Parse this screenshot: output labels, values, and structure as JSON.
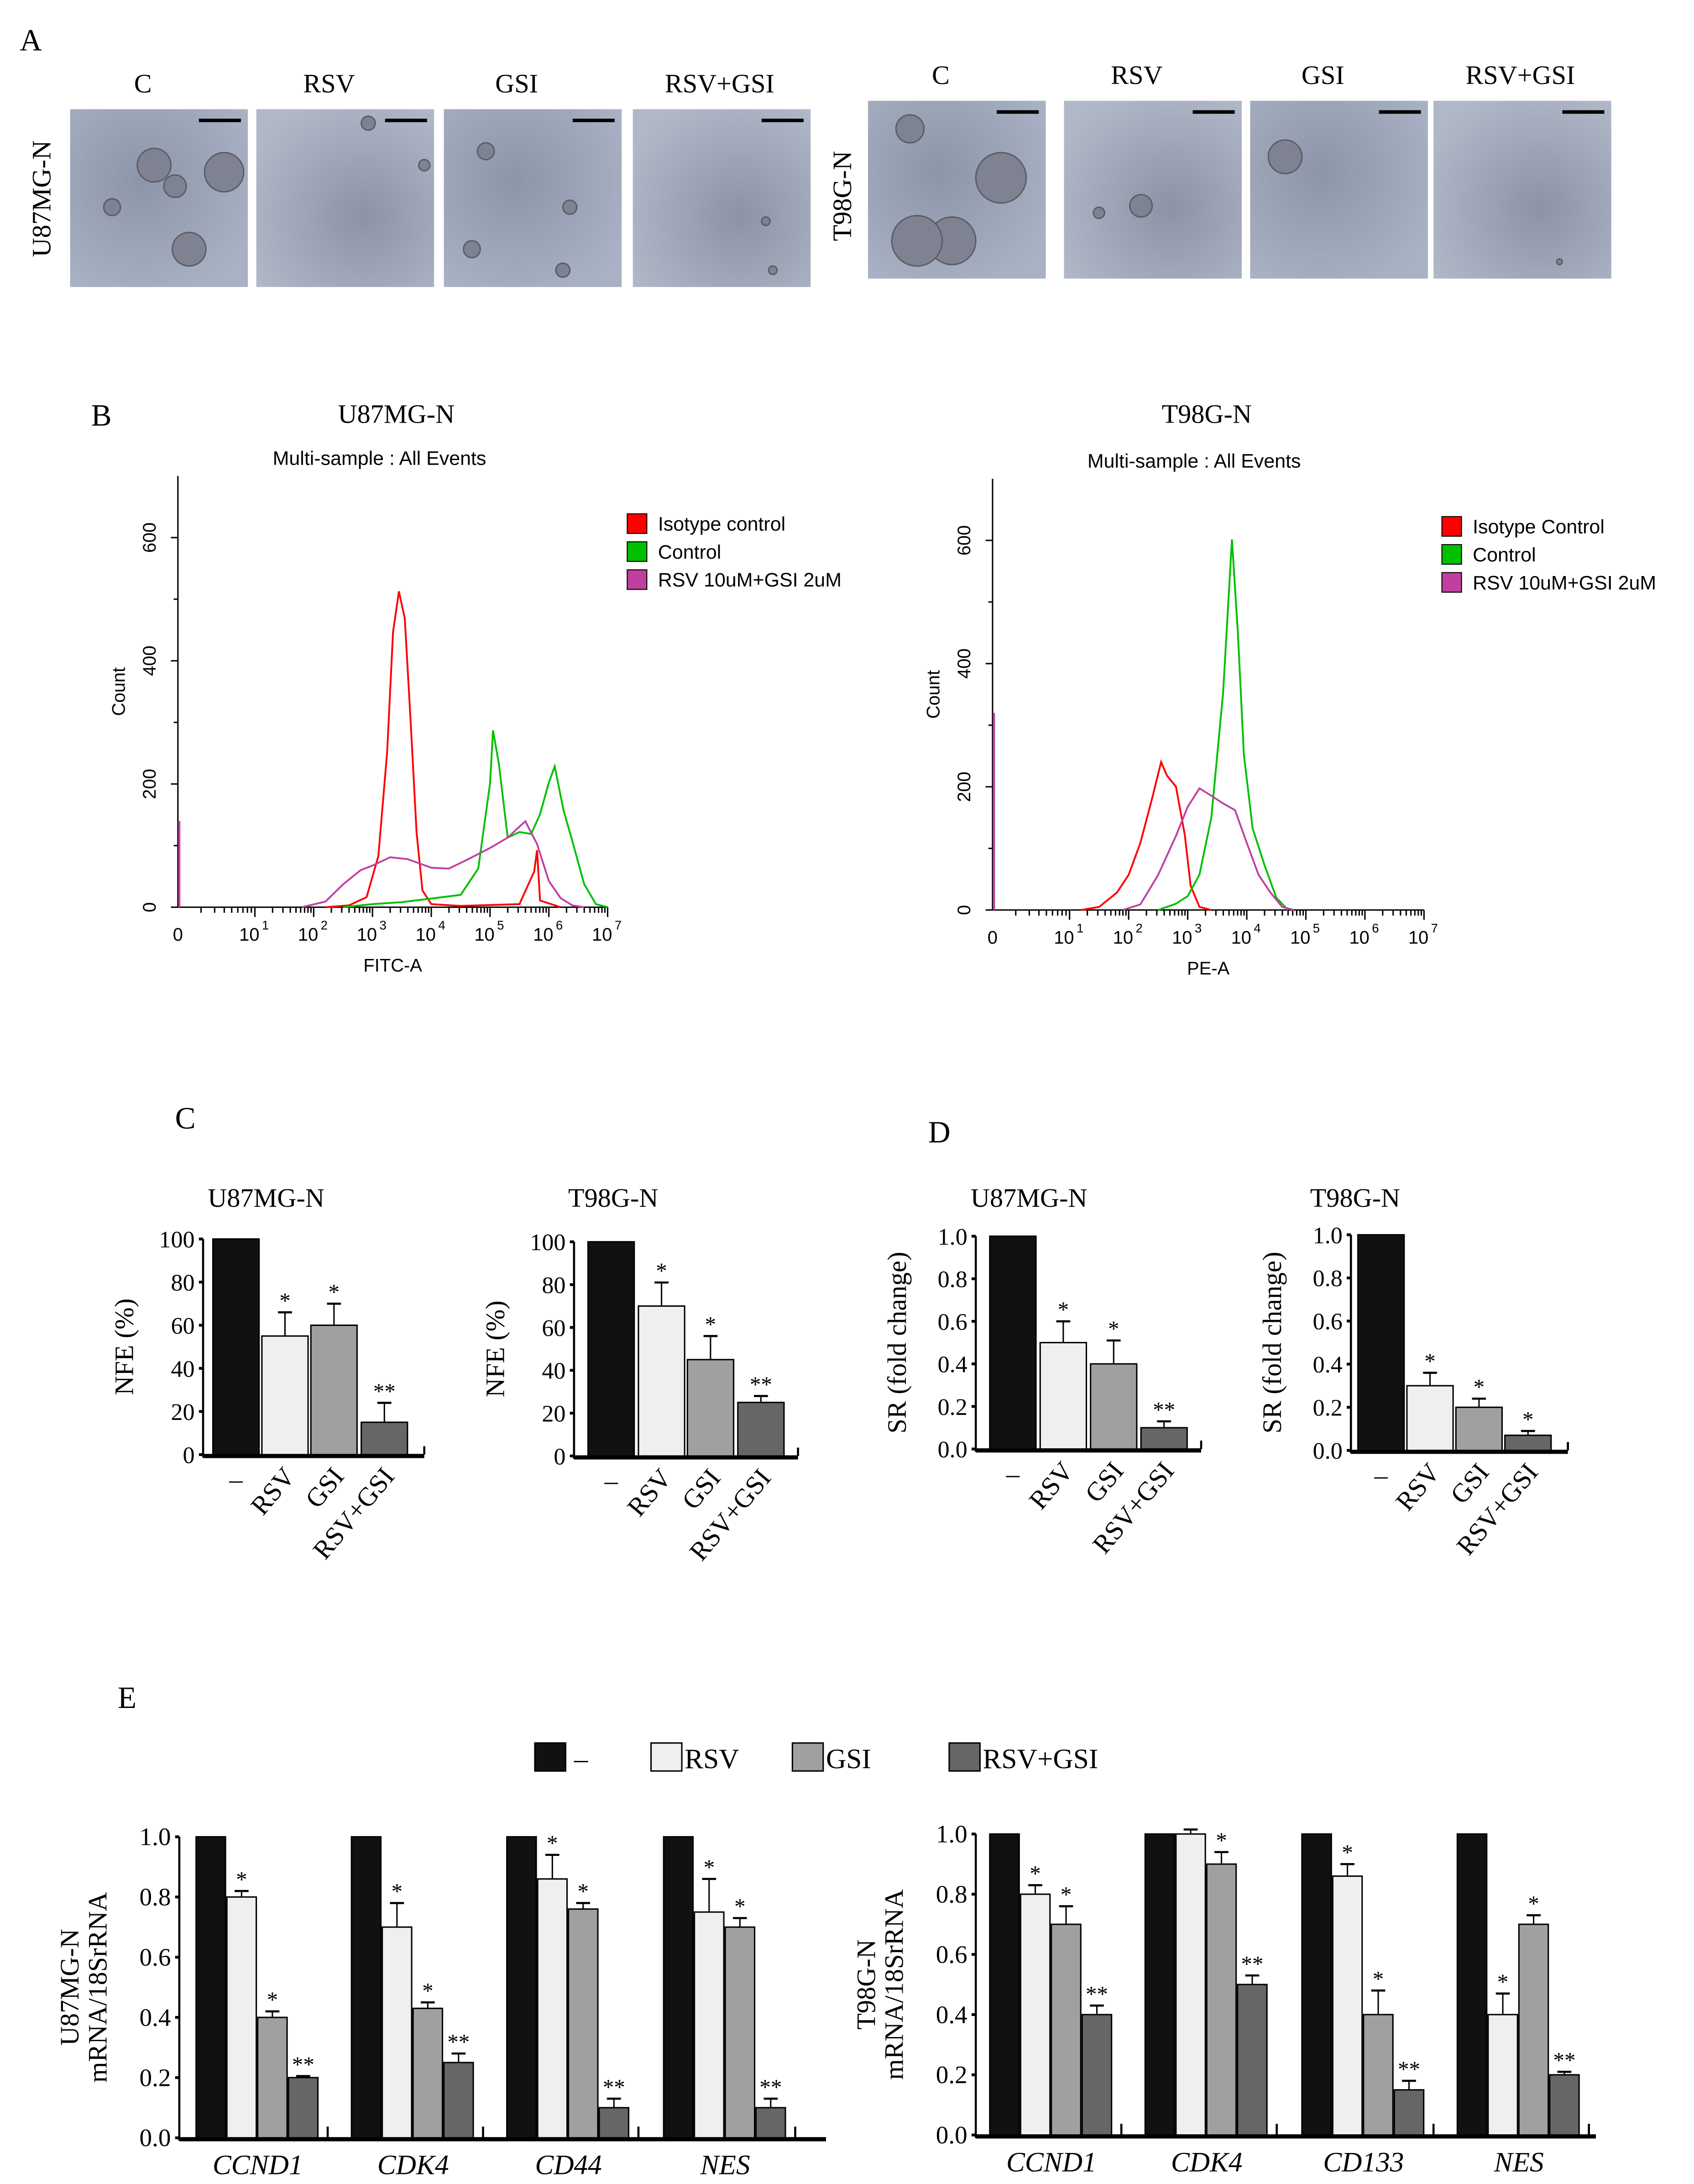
{
  "panels": {
    "a": "A",
    "b": "B",
    "c": "C",
    "d": "D",
    "e": "E"
  },
  "panel_a": {
    "left_row_label": "U87MG-N",
    "right_row_label": "T98G-N",
    "conditions": [
      "C",
      "RSV",
      "GSI",
      "RSV+GSI"
    ]
  },
  "panel_b": {
    "left_title": "U87MG-N",
    "right_title": "T98G-N",
    "subtitle": "Multi-sample : All Events"
  },
  "panel_c": {
    "left_title": "U87MG-N",
    "right_title": "T98G-N"
  },
  "panel_d": {
    "left_title": "U87MG-N",
    "right_title": "T98G-N"
  },
  "panel_e": {
    "legend": [
      "–",
      "RSV",
      "GSI",
      "RSV+GSI"
    ]
  },
  "colors": {
    "control": "#111111",
    "rsv": "#efefef",
    "gsi": "#a0a0a0",
    "rsv_gsi": "#666666",
    "isotype": "#ff0000",
    "flow_control": "#00c000",
    "flow_combo": "#c040a0"
  },
  "chart_data": [
    {
      "type": "line",
      "title": "U87MG-N",
      "subtitle": "Multi-sample : All Events",
      "xlabel": "FITC-A",
      "ylabel": "Count",
      "xscale": "log",
      "xlim_log10": [
        0,
        7
      ],
      "ylim": [
        0,
        700
      ],
      "yticks": [
        "0",
        "200",
        "400",
        "600"
      ],
      "xtick_base": "10",
      "xtick_zero": "0",
      "xtick_exponents": [
        "1",
        "2",
        "3",
        "4",
        "5",
        "6",
        "7"
      ],
      "legend_placement": "top-right",
      "series": [
        {
          "name": "Isotype control",
          "color": "#ff0000",
          "points_log10x_count": [
            [
              2.2,
              0
            ],
            [
              2.6,
              3
            ],
            [
              2.9,
              15
            ],
            [
              3.1,
              80
            ],
            [
              3.25,
              250
            ],
            [
              3.35,
              450
            ],
            [
              3.45,
              510
            ],
            [
              3.55,
              470
            ],
            [
              3.65,
              300
            ],
            [
              3.75,
              120
            ],
            [
              3.85,
              30
            ],
            [
              4.0,
              5
            ],
            [
              4.5,
              2
            ],
            [
              5.5,
              5
            ],
            [
              5.75,
              60
            ],
            [
              5.8,
              90
            ],
            [
              5.85,
              10
            ],
            [
              6.2,
              0
            ]
          ]
        },
        {
          "name": "Control",
          "color": "#00c000",
          "points_log10x_count": [
            [
              2.5,
              0
            ],
            [
              3,
              5
            ],
            [
              3.5,
              10
            ],
            [
              4,
              15
            ],
            [
              4.5,
              20
            ],
            [
              4.8,
              60
            ],
            [
              5.0,
              200
            ],
            [
              5.05,
              290
            ],
            [
              5.15,
              230
            ],
            [
              5.3,
              110
            ],
            [
              5.5,
              120
            ],
            [
              5.7,
              120
            ],
            [
              5.85,
              150
            ],
            [
              6.0,
              200
            ],
            [
              6.1,
              230
            ],
            [
              6.25,
              160
            ],
            [
              6.4,
              110
            ],
            [
              6.6,
              40
            ],
            [
              6.8,
              5
            ],
            [
              7.0,
              0
            ]
          ]
        },
        {
          "name": "RSV 10uM+GSI 2uM",
          "color": "#c040a0",
          "axis_count": 140,
          "points_log10x_count": [
            [
              1.8,
              0
            ],
            [
              2.2,
              10
            ],
            [
              2.5,
              40
            ],
            [
              2.8,
              60
            ],
            [
              3.0,
              70
            ],
            [
              3.3,
              80
            ],
            [
              3.6,
              75
            ],
            [
              4.0,
              65
            ],
            [
              4.3,
              60
            ],
            [
              4.6,
              75
            ],
            [
              5.0,
              95
            ],
            [
              5.3,
              110
            ],
            [
              5.6,
              140
            ],
            [
              5.8,
              100
            ],
            [
              6.0,
              40
            ],
            [
              6.2,
              15
            ],
            [
              6.4,
              3
            ],
            [
              6.6,
              0
            ]
          ]
        }
      ]
    },
    {
      "type": "line",
      "title": "T98G-N",
      "subtitle": "Multi-sample : All Events",
      "xlabel": "PE-A",
      "ylabel": "Count",
      "xscale": "log",
      "xlim_log10": [
        0,
        7
      ],
      "ylim": [
        0,
        700
      ],
      "yticks": [
        "0",
        "200",
        "400",
        "600"
      ],
      "xtick_base": "10",
      "xtick_zero": "0",
      "xtick_exponents": [
        "1",
        "2",
        "3",
        "4",
        "5",
        "6",
        "7"
      ],
      "legend_placement": "top-right",
      "series": [
        {
          "name": "Isotype Control",
          "color": "#ff0000",
          "points_log10x_count": [
            [
              1.2,
              0
            ],
            [
              1.5,
              5
            ],
            [
              1.8,
              30
            ],
            [
              2.0,
              60
            ],
            [
              2.2,
              110
            ],
            [
              2.4,
              180
            ],
            [
              2.55,
              240
            ],
            [
              2.65,
              220
            ],
            [
              2.8,
              200
            ],
            [
              2.95,
              120
            ],
            [
              3.05,
              40
            ],
            [
              3.2,
              5
            ],
            [
              3.4,
              0
            ]
          ]
        },
        {
          "name": "Control",
          "color": "#00c000",
          "points_log10x_count": [
            [
              2.5,
              0
            ],
            [
              2.8,
              10
            ],
            [
              3.0,
              25
            ],
            [
              3.2,
              60
            ],
            [
              3.4,
              150
            ],
            [
              3.6,
              350
            ],
            [
              3.75,
              600
            ],
            [
              3.85,
              450
            ],
            [
              3.95,
              250
            ],
            [
              4.1,
              130
            ],
            [
              4.3,
              70
            ],
            [
              4.5,
              20
            ],
            [
              4.7,
              0
            ]
          ]
        },
        {
          "name": "RSV 10uM+GSI 2uM",
          "color": "#c040a0",
          "axis_count": 320,
          "points_log10x_count": [
            [
              1.9,
              0
            ],
            [
              2.2,
              10
            ],
            [
              2.5,
              60
            ],
            [
              2.8,
              120
            ],
            [
              3.0,
              170
            ],
            [
              3.2,
              200
            ],
            [
              3.4,
              185
            ],
            [
              3.6,
              170
            ],
            [
              3.8,
              160
            ],
            [
              4.0,
              110
            ],
            [
              4.2,
              60
            ],
            [
              4.4,
              30
            ],
            [
              4.6,
              5
            ],
            [
              4.8,
              0
            ]
          ]
        }
      ]
    },
    {
      "type": "bar",
      "title": "U87MG-N",
      "ylabel": "NFE (%)",
      "ylim": [
        0,
        100
      ],
      "yticks": [
        "0",
        "20",
        "40",
        "60",
        "80",
        "100"
      ],
      "categories": [
        "–",
        "RSV",
        "GSI",
        "RSV+GSI"
      ],
      "values": [
        100,
        55,
        60,
        15
      ],
      "errors": [
        0,
        11,
        10,
        9
      ],
      "significance": [
        "",
        "*",
        "*",
        "**"
      ]
    },
    {
      "type": "bar",
      "title": "T98G-N",
      "ylabel": "NFE (%)",
      "ylim": [
        0,
        100
      ],
      "yticks": [
        "0",
        "20",
        "40",
        "60",
        "80",
        "100"
      ],
      "categories": [
        "–",
        "RSV",
        "GSI",
        "RSV+GSI"
      ],
      "values": [
        100,
        70,
        45,
        25
      ],
      "errors": [
        0,
        11,
        11,
        3
      ],
      "significance": [
        "",
        "*",
        "*",
        "**"
      ]
    },
    {
      "type": "bar",
      "title": "U87MG-N",
      "ylabel": "SR (fold change)",
      "ylim": [
        0,
        1.0
      ],
      "yticks": [
        "0.0",
        "0.2",
        "0.4",
        "0.6",
        "0.8",
        "1.0"
      ],
      "categories": [
        "–",
        "RSV",
        "GSI",
        "RSV+GSI"
      ],
      "values": [
        1.0,
        0.5,
        0.4,
        0.1
      ],
      "errors": [
        0,
        0.1,
        0.11,
        0.03
      ],
      "significance": [
        "",
        "*",
        "*",
        "**"
      ]
    },
    {
      "type": "bar",
      "title": "T98G-N",
      "ylabel": "SR (fold change)",
      "ylim": [
        0,
        1.0
      ],
      "yticks": [
        "0.0",
        "0.2",
        "0.4",
        "0.6",
        "0.8",
        "1.0"
      ],
      "categories": [
        "–",
        "RSV",
        "GSI",
        "RSV+GSI"
      ],
      "values": [
        1.0,
        0.3,
        0.2,
        0.07
      ],
      "errors": [
        0,
        0.06,
        0.04,
        0.02
      ],
      "significance": [
        "",
        "*",
        "*",
        "*"
      ]
    },
    {
      "type": "bar",
      "ylabel": [
        "U87MG-N",
        "mRNA/18SrRNA"
      ],
      "ylim": [
        0,
        1.0
      ],
      "yticks": [
        "0.0",
        "0.2",
        "0.4",
        "0.6",
        "0.8",
        "1.0"
      ],
      "categories": [
        "CCND1",
        "CDK4",
        "CD44",
        "NES"
      ],
      "series": [
        {
          "name": "–",
          "values": [
            1,
            1,
            1,
            1
          ],
          "errors": [
            0,
            0,
            0,
            0
          ],
          "significance": [
            "",
            "",
            "",
            ""
          ]
        },
        {
          "name": "RSV",
          "values": [
            0.8,
            0.7,
            0.86,
            0.75
          ],
          "errors": [
            0.02,
            0.08,
            0.08,
            0.11
          ],
          "significance": [
            "*",
            "*",
            "*",
            "*"
          ]
        },
        {
          "name": "GSI",
          "values": [
            0.4,
            0.43,
            0.76,
            0.7
          ],
          "errors": [
            0.02,
            0.02,
            0.02,
            0.03
          ],
          "significance": [
            "*",
            "*",
            "*",
            "*"
          ]
        },
        {
          "name": "RSV+GSI",
          "values": [
            0.2,
            0.25,
            0.1,
            0.1
          ],
          "errors": [
            0.005,
            0.03,
            0.03,
            0.03
          ],
          "significance": [
            "**",
            "**",
            "**",
            "**"
          ]
        }
      ]
    },
    {
      "type": "bar",
      "ylabel": [
        "T98G-N",
        "mRNA/18SrRNA"
      ],
      "ylim": [
        0,
        1.0
      ],
      "yticks": [
        "0.0",
        "0.2",
        "0.4",
        "0.6",
        "0.8",
        "1.0"
      ],
      "categories": [
        "CCND1",
        "CDK4",
        "CD133",
        "NES"
      ],
      "series": [
        {
          "name": "–",
          "values": [
            1,
            1,
            1,
            1
          ],
          "errors": [
            0,
            0,
            0,
            0
          ],
          "significance": [
            "",
            "",
            "",
            ""
          ]
        },
        {
          "name": "RSV",
          "values": [
            0.8,
            1.0,
            0.86,
            0.4
          ],
          "errors": [
            0.03,
            0.015,
            0.04,
            0.07
          ],
          "significance": [
            "*",
            "",
            "*",
            "*"
          ]
        },
        {
          "name": "GSI",
          "values": [
            0.7,
            0.9,
            0.4,
            0.7
          ],
          "errors": [
            0.06,
            0.04,
            0.08,
            0.03
          ],
          "significance": [
            "*",
            "*",
            "*",
            "*"
          ]
        },
        {
          "name": "RSV+GSI",
          "values": [
            0.4,
            0.5,
            0.15,
            0.2
          ],
          "errors": [
            0.03,
            0.03,
            0.03,
            0.01
          ],
          "significance": [
            "**",
            "**",
            "**",
            "**"
          ]
        }
      ]
    }
  ]
}
